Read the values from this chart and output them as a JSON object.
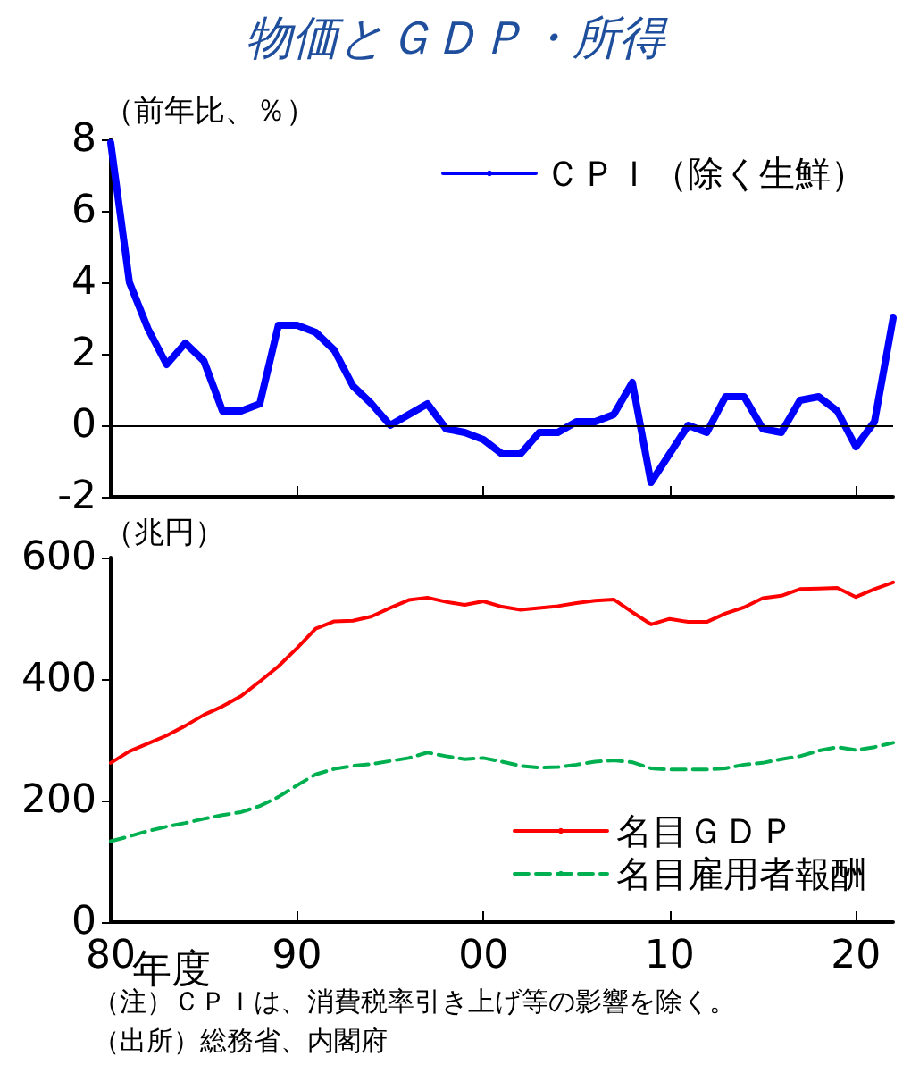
{
  "chart_data": [
    {
      "type": "line",
      "title": "物価とＧＤＰ・所得",
      "ylabel": "（前年比、％）",
      "x": [
        1980,
        1981,
        1982,
        1983,
        1984,
        1985,
        1986,
        1987,
        1988,
        1989,
        1990,
        1991,
        1992,
        1993,
        1994,
        1995,
        1996,
        1997,
        1998,
        1999,
        2000,
        2001,
        2002,
        2003,
        2004,
        2005,
        2006,
        2007,
        2008,
        2009,
        2010,
        2011,
        2012,
        2013,
        2014,
        2015,
        2016,
        2017,
        2018,
        2019,
        2020,
        2021,
        2022
      ],
      "series": [
        {
          "name": "ＣＰＩ（除く生鮮）",
          "color": "#0000ff",
          "values": [
            7.9,
            4.0,
            2.7,
            1.7,
            2.3,
            1.8,
            0.4,
            0.4,
            0.6,
            2.8,
            2.8,
            2.6,
            2.1,
            1.1,
            0.6,
            0.0,
            0.3,
            0.6,
            -0.1,
            -0.2,
            -0.4,
            -0.8,
            -0.8,
            -0.2,
            -0.2,
            0.1,
            0.1,
            0.3,
            1.2,
            -1.6,
            -0.8,
            0.0,
            -0.2,
            0.8,
            0.8,
            -0.1,
            -0.2,
            0.7,
            0.8,
            0.4,
            -0.6,
            0.1,
            3.0
          ]
        }
      ],
      "xlim": [
        1980,
        2022
      ],
      "xticks": [
        {
          "value": 1980,
          "label": null
        },
        {
          "value": 1990,
          "label": null
        },
        {
          "value": 2000,
          "label": null
        },
        {
          "value": 2010,
          "label": null
        },
        {
          "value": 2020,
          "label": null
        }
      ],
      "ylim": [
        -2,
        8
      ],
      "yticks": [
        -2,
        0,
        2,
        4,
        6,
        8
      ],
      "tick_labels": "y",
      "ref_lines": [
        {
          "axis": "y",
          "value": 0,
          "color": "#000000"
        }
      ],
      "grid": false,
      "legend": "top right",
      "marker": "none",
      "line_style": "solid"
    },
    {
      "type": "line",
      "ylabel": "（兆円）",
      "x": [
        1980,
        1981,
        1982,
        1983,
        1984,
        1985,
        1986,
        1987,
        1988,
        1989,
        1990,
        1991,
        1992,
        1993,
        1994,
        1995,
        1996,
        1997,
        1998,
        1999,
        2000,
        2001,
        2002,
        2003,
        2004,
        2005,
        2006,
        2007,
        2008,
        2009,
        2010,
        2011,
        2012,
        2013,
        2014,
        2015,
        2016,
        2017,
        2018,
        2019,
        2020,
        2021,
        2022
      ],
      "series": [
        {
          "name": "名目ＧＤＰ",
          "color": "#ff0000",
          "line_style": "solid",
          "values": [
            262,
            281,
            294,
            307,
            323,
            341,
            355,
            372,
            396,
            421,
            451,
            483,
            495,
            496,
            503,
            517,
            530,
            534,
            527,
            522,
            528,
            519,
            514,
            517,
            520,
            525,
            529,
            531,
            510,
            490,
            499,
            494,
            494,
            508,
            518,
            533,
            537,
            548,
            549,
            550,
            535,
            548,
            559
          ]
        },
        {
          "name": "名目雇用者報酬",
          "color": "#00b050",
          "line_style": "dashed",
          "values": [
            133,
            141,
            150,
            157,
            163,
            170,
            176,
            181,
            191,
            206,
            225,
            243,
            252,
            257,
            260,
            265,
            270,
            279,
            273,
            268,
            270,
            264,
            257,
            254,
            255,
            259,
            264,
            266,
            263,
            253,
            251,
            251,
            251,
            253,
            259,
            262,
            268,
            273,
            282,
            288,
            283,
            288,
            295
          ]
        }
      ],
      "xlabel": "年度",
      "xlim": [
        1980,
        2022
      ],
      "xticks": [
        {
          "value": 1980,
          "label": "80"
        },
        {
          "value": 1990,
          "label": "90"
        },
        {
          "value": 2000,
          "label": "00"
        },
        {
          "value": 2010,
          "label": "10"
        },
        {
          "value": 2020,
          "label": "20"
        }
      ],
      "ylim": [
        0,
        600
      ],
      "yticks": [
        0,
        200,
        400,
        600
      ],
      "annotations": [
        "（注）ＣＰＩは、消費税率引き上げ等の影響を除く。",
        "（出所）総務省、内閣府"
      ],
      "grid": false,
      "legend": "bottom right",
      "marker": "none"
    }
  ]
}
